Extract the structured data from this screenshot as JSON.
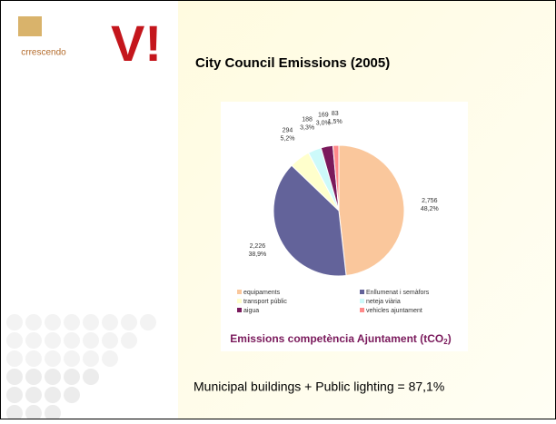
{
  "logo": {
    "name": "crrescendo",
    "mark": "V!"
  },
  "heading": "City Council Emissions (2005)",
  "footer": "Municipal buildings + Public lighting = 87,1%",
  "chart_data": {
    "type": "pie",
    "title": "Emissions competència Ajuntament (tCO",
    "title_subscript": "2",
    "title_end": ")",
    "categories": [
      "equipaments",
      "Enllumenat i semàfors",
      "transport públic",
      "neteja viària",
      "aigua",
      "vehicles ajuntament"
    ],
    "values": [
      2756,
      2226,
      294,
      188,
      169,
      83
    ],
    "value_labels": [
      "2,756",
      "2,226",
      "294",
      "188",
      "169",
      "83"
    ],
    "percent_labels": [
      "48,2%",
      "38,9%",
      "5,2%",
      "3,3%",
      "3,0%",
      "1,5%"
    ],
    "colors": [
      "#fac79c",
      "#63639a",
      "#ffffcc",
      "#cdfafa",
      "#7a1a5c",
      "#ff8a8a"
    ]
  }
}
